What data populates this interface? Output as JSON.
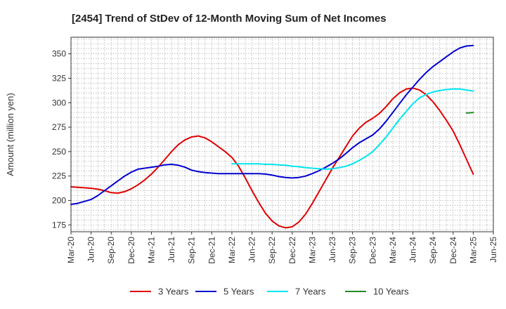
{
  "chart_data": {
    "type": "line",
    "title": "[2454]  Trend of StDev of 12-Month Moving Sum of Net Incomes",
    "xlabel": "",
    "ylabel": "Amount (million yen)",
    "ylim": [
      168,
      367
    ],
    "yticks": [
      175,
      200,
      225,
      250,
      275,
      300,
      325,
      350
    ],
    "xlim": [
      "2020-03",
      "2025-06"
    ],
    "xticks": [
      "Mar-20",
      "Jun-20",
      "Sep-20",
      "Dec-20",
      "Mar-21",
      "Jun-21",
      "Sep-21",
      "Dec-21",
      "Mar-22",
      "Jun-22",
      "Sep-22",
      "Dec-22",
      "Mar-23",
      "Jun-23",
      "Sep-23",
      "Dec-23",
      "Mar-24",
      "Jun-24",
      "Sep-24",
      "Dec-24",
      "Mar-25",
      "Jun-25"
    ],
    "grid": true,
    "legend_position": "bottom",
    "series": [
      {
        "name": "3 Years",
        "color": "#e00000",
        "points": [
          [
            "2020-03",
            214
          ],
          [
            "2020-04",
            213.5
          ],
          [
            "2020-05",
            213
          ],
          [
            "2020-06",
            212.5
          ],
          [
            "2020-07",
            211.5
          ],
          [
            "2020-08",
            210
          ],
          [
            "2020-09",
            208
          ],
          [
            "2020-10",
            207.5
          ],
          [
            "2020-11",
            209
          ],
          [
            "2020-12",
            212
          ],
          [
            "2021-01",
            216
          ],
          [
            "2021-02",
            221
          ],
          [
            "2021-03",
            227
          ],
          [
            "2021-04",
            234
          ],
          [
            "2021-05",
            242
          ],
          [
            "2021-06",
            250
          ],
          [
            "2021-07",
            257
          ],
          [
            "2021-08",
            262
          ],
          [
            "2021-09",
            265
          ],
          [
            "2021-10",
            266
          ],
          [
            "2021-11",
            264
          ],
          [
            "2021-12",
            260
          ],
          [
            "2022-01",
            255
          ],
          [
            "2022-02",
            250
          ],
          [
            "2022-03",
            244
          ],
          [
            "2022-04",
            235
          ],
          [
            "2022-05",
            223
          ],
          [
            "2022-06",
            210
          ],
          [
            "2022-07",
            198
          ],
          [
            "2022-08",
            187
          ],
          [
            "2022-09",
            179
          ],
          [
            "2022-10",
            174
          ],
          [
            "2022-11",
            172
          ],
          [
            "2022-12",
            173
          ],
          [
            "2023-01",
            178
          ],
          [
            "2023-02",
            186
          ],
          [
            "2023-03",
            197
          ],
          [
            "2023-04",
            209
          ],
          [
            "2023-05",
            221
          ],
          [
            "2023-06",
            233
          ],
          [
            "2023-07",
            244
          ],
          [
            "2023-08",
            255
          ],
          [
            "2023-09",
            266
          ],
          [
            "2023-10",
            274
          ],
          [
            "2023-11",
            280
          ],
          [
            "2023-12",
            284
          ],
          [
            "2024-01",
            289
          ],
          [
            "2024-02",
            296
          ],
          [
            "2024-03",
            304
          ],
          [
            "2024-04",
            310
          ],
          [
            "2024-05",
            314
          ],
          [
            "2024-06",
            315
          ],
          [
            "2024-07",
            313
          ],
          [
            "2024-08",
            308
          ],
          [
            "2024-09",
            301
          ],
          [
            "2024-10",
            292
          ],
          [
            "2024-11",
            282
          ],
          [
            "2024-12",
            271
          ],
          [
            "2025-01",
            257
          ],
          [
            "2025-02",
            242
          ],
          [
            "2025-03",
            227
          ]
        ]
      },
      {
        "name": "5 Years",
        "color": "#0000d0",
        "points": [
          [
            "2020-03",
            196
          ],
          [
            "2020-04",
            197
          ],
          [
            "2020-05",
            199
          ],
          [
            "2020-06",
            201
          ],
          [
            "2020-07",
            205
          ],
          [
            "2020-08",
            210
          ],
          [
            "2020-09",
            215
          ],
          [
            "2020-10",
            220
          ],
          [
            "2020-11",
            225
          ],
          [
            "2020-12",
            229
          ],
          [
            "2021-01",
            232
          ],
          [
            "2021-02",
            233
          ],
          [
            "2021-03",
            234
          ],
          [
            "2021-04",
            235
          ],
          [
            "2021-05",
            236.5
          ],
          [
            "2021-06",
            237
          ],
          [
            "2021-07",
            236
          ],
          [
            "2021-08",
            234
          ],
          [
            "2021-09",
            231
          ],
          [
            "2021-10",
            229.5
          ],
          [
            "2021-11",
            228.5
          ],
          [
            "2021-12",
            228
          ],
          [
            "2022-01",
            227.5
          ],
          [
            "2022-02",
            227.5
          ],
          [
            "2022-03",
            227.5
          ],
          [
            "2022-04",
            227.5
          ],
          [
            "2022-05",
            227.5
          ],
          [
            "2022-06",
            227.5
          ],
          [
            "2022-07",
            227.5
          ],
          [
            "2022-08",
            227
          ],
          [
            "2022-09",
            226
          ],
          [
            "2022-10",
            224.5
          ],
          [
            "2022-11",
            223.5
          ],
          [
            "2022-12",
            223
          ],
          [
            "2023-01",
            223.5
          ],
          [
            "2023-02",
            225
          ],
          [
            "2023-03",
            227.5
          ],
          [
            "2023-04",
            230.5
          ],
          [
            "2023-05",
            234
          ],
          [
            "2023-06",
            238
          ],
          [
            "2023-07",
            242.5
          ],
          [
            "2023-08",
            248
          ],
          [
            "2023-09",
            254
          ],
          [
            "2023-10",
            259
          ],
          [
            "2023-11",
            263
          ],
          [
            "2023-12",
            267
          ],
          [
            "2024-01",
            273
          ],
          [
            "2024-02",
            281
          ],
          [
            "2024-03",
            290
          ],
          [
            "2024-04",
            299
          ],
          [
            "2024-05",
            308
          ],
          [
            "2024-06",
            316
          ],
          [
            "2024-07",
            324
          ],
          [
            "2024-08",
            331
          ],
          [
            "2024-09",
            337
          ],
          [
            "2024-10",
            342
          ],
          [
            "2024-11",
            347
          ],
          [
            "2024-12",
            352
          ],
          [
            "2025-01",
            356
          ],
          [
            "2025-02",
            358
          ],
          [
            "2025-03",
            358.5
          ]
        ]
      },
      {
        "name": "7 Years",
        "color": "#00e5ee",
        "points": [
          [
            "2022-03",
            237.5
          ],
          [
            "2022-04",
            237.5
          ],
          [
            "2022-05",
            237.5
          ],
          [
            "2022-06",
            237.5
          ],
          [
            "2022-07",
            237.5
          ],
          [
            "2022-08",
            237
          ],
          [
            "2022-09",
            237
          ],
          [
            "2022-10",
            236.5
          ],
          [
            "2022-11",
            236
          ],
          [
            "2022-12",
            235
          ],
          [
            "2023-01",
            234.5
          ],
          [
            "2023-02",
            233.5
          ],
          [
            "2023-03",
            233
          ],
          [
            "2023-04",
            232.5
          ],
          [
            "2023-05",
            232
          ],
          [
            "2023-06",
            232.5
          ],
          [
            "2023-07",
            233.5
          ],
          [
            "2023-08",
            235
          ],
          [
            "2023-09",
            237.5
          ],
          [
            "2023-10",
            241
          ],
          [
            "2023-11",
            245
          ],
          [
            "2023-12",
            250
          ],
          [
            "2024-01",
            257
          ],
          [
            "2024-02",
            265
          ],
          [
            "2024-03",
            274
          ],
          [
            "2024-04",
            283
          ],
          [
            "2024-05",
            291
          ],
          [
            "2024-06",
            299
          ],
          [
            "2024-07",
            305
          ],
          [
            "2024-08",
            308.5
          ],
          [
            "2024-09",
            311
          ],
          [
            "2024-10",
            312.5
          ],
          [
            "2024-11",
            313.5
          ],
          [
            "2024-12",
            314
          ],
          [
            "2025-01",
            314
          ],
          [
            "2025-02",
            313
          ],
          [
            "2025-03",
            312
          ]
        ]
      },
      {
        "name": "10 Years",
        "color": "#228b22",
        "points": [
          [
            "2025-02",
            289.5
          ],
          [
            "2025-03",
            290
          ]
        ]
      }
    ]
  }
}
